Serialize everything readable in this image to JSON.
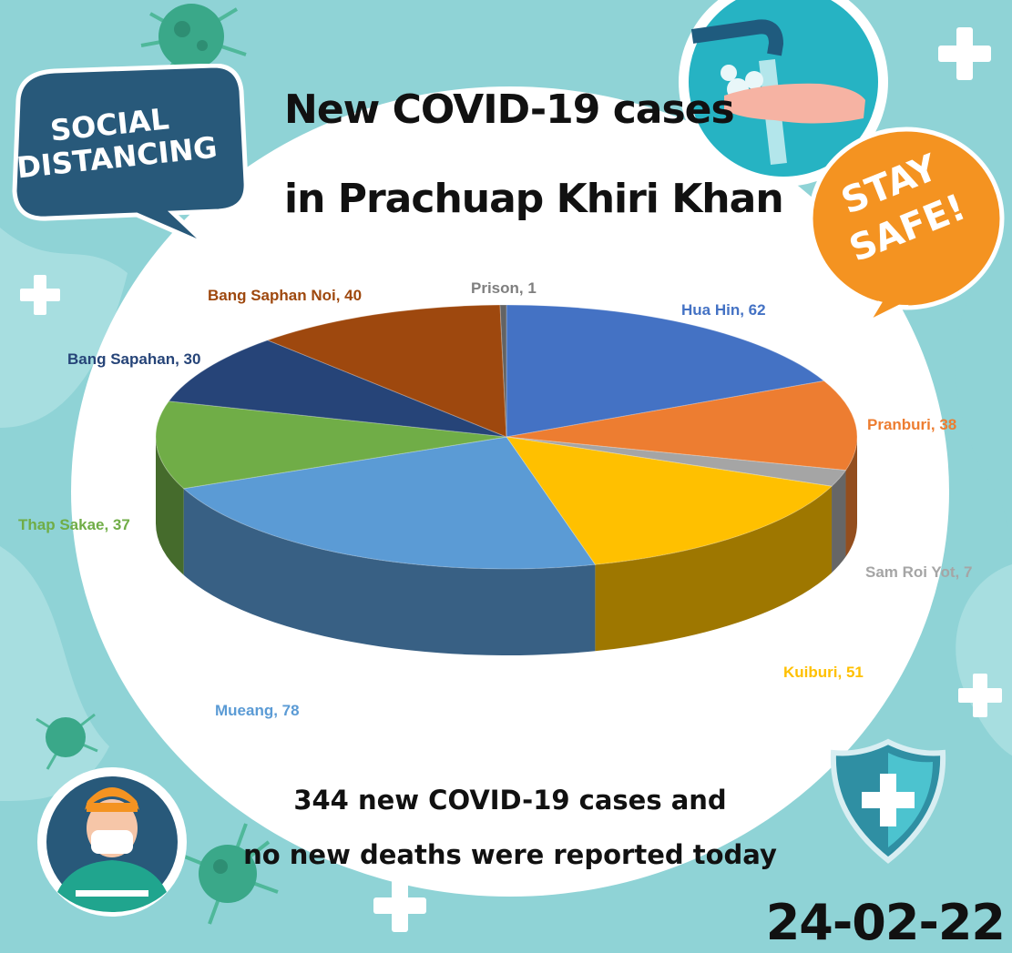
{
  "title_lines": [
    "New COVID-19 cases",
    "in Prachuap Khiri Khan"
  ],
  "badges": {
    "social_distancing": [
      "SOCIAL",
      "DISTANCING"
    ],
    "stay_safe": [
      "STAY",
      "SAFE!"
    ]
  },
  "summary_lines": [
    "344 new COVID-19 cases and",
    "no new deaths were reported today"
  ],
  "date": "24-02-22",
  "colors": {
    "background": "#8fd3d6",
    "badge_navy": "#28597a",
    "badge_orange": "#f49321"
  },
  "icons": [
    "virus-icon",
    "plus-icon",
    "handwashing-icon",
    "masked-person-icon",
    "shield-plus-icon"
  ],
  "chart_data": {
    "type": "pie",
    "title": "",
    "categories": [
      "Hua Hin",
      "Pranburi",
      "Sam Roi Yot",
      "Kuiburi",
      "Mueang",
      "Thap Sakae",
      "Bang Sapahan",
      "Bang Saphan Noi",
      "Prison"
    ],
    "values": [
      62,
      38,
      7,
      51,
      78,
      37,
      30,
      40,
      1
    ],
    "colors": [
      "#4472c4",
      "#ed7d31",
      "#a5a5a5",
      "#ffc000",
      "#5b9bd5",
      "#70ad47",
      "#264478",
      "#9e480e",
      "#636363"
    ],
    "label_colors": [
      "#4472c4",
      "#ed7d31",
      "#a5a5a5",
      "#ffc000",
      "#5b9bd5",
      "#70ad47",
      "#264478",
      "#9e480e",
      "#7f7f7f"
    ],
    "data_labels": [
      "Hua Hin, 62",
      "Pranburi, 38",
      "Sam Roi Yot, 7",
      "Kuiburi, 51",
      "Mueang, 78",
      "Thap Sakae, 37",
      "Bang Sapahan, 30",
      "Bang Saphan Noi, 40",
      "Prison, 1"
    ],
    "style": "3d"
  }
}
